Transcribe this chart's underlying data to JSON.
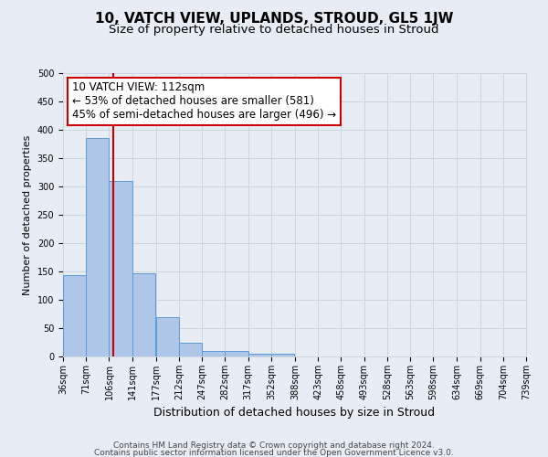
{
  "title": "10, VATCH VIEW, UPLANDS, STROUD, GL5 1JW",
  "subtitle": "Size of property relative to detached houses in Stroud",
  "xlabel": "Distribution of detached houses by size in Stroud",
  "ylabel": "Number of detached properties",
  "bar_values": [
    143,
    385,
    310,
    147,
    70,
    24,
    10,
    10,
    5,
    5,
    0,
    0,
    0,
    0,
    0,
    0,
    0,
    0,
    0,
    0
  ],
  "bin_edges": [
    36,
    71,
    106,
    141,
    177,
    212,
    247,
    282,
    317,
    352,
    388,
    423,
    458,
    493,
    528,
    563,
    598,
    634,
    669,
    704,
    739
  ],
  "tick_labels": [
    "36sqm",
    "71sqm",
    "106sqm",
    "141sqm",
    "177sqm",
    "212sqm",
    "247sqm",
    "282sqm",
    "317sqm",
    "352sqm",
    "388sqm",
    "423sqm",
    "458sqm",
    "493sqm",
    "528sqm",
    "563sqm",
    "598sqm",
    "634sqm",
    "669sqm",
    "704sqm",
    "739sqm"
  ],
  "bar_color": "#aec6e8",
  "bar_edge_color": "#5b9bd5",
  "vline_x": 112,
  "vline_color": "#cc0000",
  "annotation_line1": "10 VATCH VIEW: 112sqm",
  "annotation_line2": "← 53% of detached houses are smaller (581)",
  "annotation_line3": "45% of semi-detached houses are larger (496) →",
  "annotation_box_facecolor": "#ffffff",
  "annotation_box_edgecolor": "#cc0000",
  "ylim": [
    0,
    500
  ],
  "yticks": [
    0,
    50,
    100,
    150,
    200,
    250,
    300,
    350,
    400,
    450,
    500
  ],
  "grid_color": "#cdd5e0",
  "background_color": "#e8edf5",
  "footer_line1": "Contains HM Land Registry data © Crown copyright and database right 2024.",
  "footer_line2": "Contains public sector information licensed under the Open Government Licence v3.0.",
  "title_fontsize": 11,
  "subtitle_fontsize": 9.5,
  "xlabel_fontsize": 9,
  "ylabel_fontsize": 8,
  "tick_fontsize": 7,
  "annotation_fontsize": 8.5,
  "footer_fontsize": 6.5
}
